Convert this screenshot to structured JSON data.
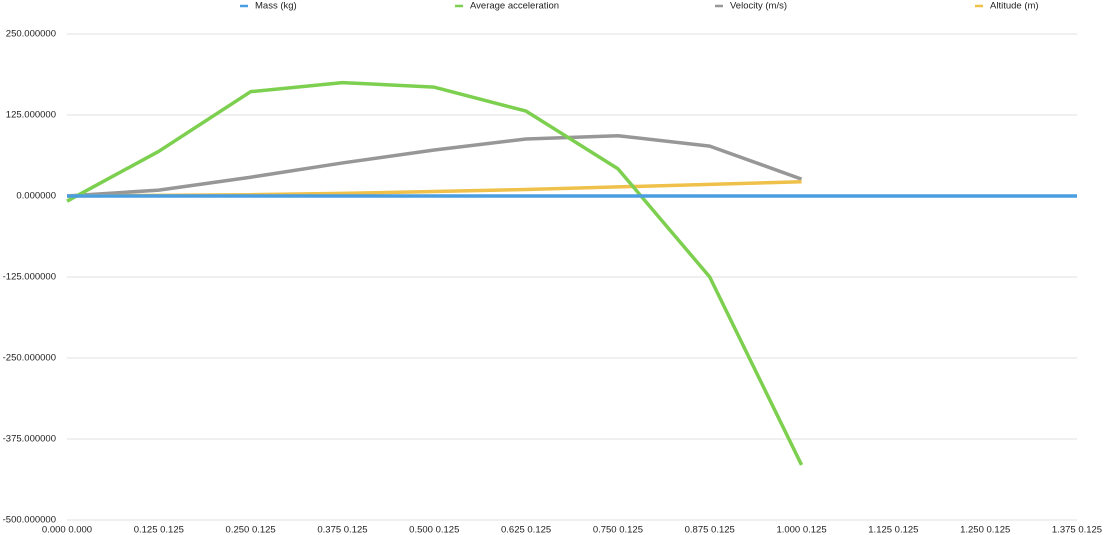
{
  "chart_data": {
    "type": "line",
    "categories": [
      "0.000 0.000",
      "0.125 0.125",
      "0.250 0.125",
      "0.375 0.125",
      "0.500 0.125",
      "0.625 0.125",
      "0.750 0.125",
      "0.875 0.125",
      "1.000 0.125",
      "1.125 0.125",
      "1.250 0.125",
      "1.375 0.125"
    ],
    "series": [
      {
        "name": "Mass (kg)",
        "color": "#4a9ee0",
        "values": [
          0,
          0,
          0,
          0,
          0,
          0,
          0,
          0,
          0,
          0,
          0,
          0
        ]
      },
      {
        "name": "Average acceleration",
        "color": "#7dd04f",
        "values": [
          -8,
          69,
          161,
          175,
          168,
          131,
          42,
          -125,
          -415,
          null,
          null,
          null
        ]
      },
      {
        "name": "Velocity (m/s)",
        "color": "#979797",
        "values": [
          0,
          9,
          29,
          51,
          71,
          88,
          93,
          77,
          26,
          null,
          null,
          null
        ]
      },
      {
        "name": "Altitude (m)",
        "color": "#efc14a",
        "values": [
          0,
          1,
          2,
          4,
          7,
          10,
          14,
          18,
          22,
          null,
          null,
          null
        ]
      }
    ],
    "ylim": [
      -500,
      250
    ],
    "yticks": [
      {
        "value": -500,
        "label": "-500.000000"
      },
      {
        "value": -375,
        "label": "-375.000000"
      },
      {
        "value": -250,
        "label": "-250.000000"
      },
      {
        "value": -125,
        "label": "-125.000000"
      },
      {
        "value": 0,
        "label": "0.000000"
      },
      {
        "value": 125,
        "label": "125.000000"
      },
      {
        "value": 250,
        "label": "250.000000"
      }
    ],
    "grid": true,
    "legend": "top"
  }
}
